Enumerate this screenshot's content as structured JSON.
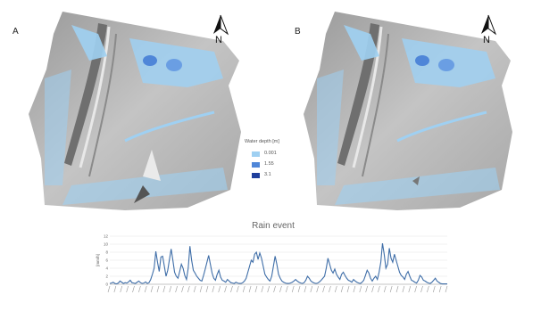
{
  "panels": [
    {
      "label": "A",
      "north_label": "N"
    },
    {
      "label": "B",
      "north_label": "N"
    }
  ],
  "legend": {
    "title": "Water depth [m]",
    "items": [
      {
        "label": "0.001",
        "color": "#9fd0f2"
      },
      {
        "label": "1.55",
        "color": "#4f86d8"
      },
      {
        "label": "3.1",
        "color": "#1f3f9c"
      }
    ]
  },
  "colors": {
    "terrain": "#b9b9b9",
    "terrain_dark": "#7f7f7f",
    "water_shallow": "#9fd0f2",
    "water_mid": "#4f86d8",
    "line": "#3f6ea8"
  },
  "chart_data": {
    "type": "line",
    "title": "Rain event",
    "ylabel": "[mm/h]",
    "xlabel": "",
    "ylim": [
      0,
      12
    ],
    "yticks": [
      0,
      2,
      4,
      6,
      8,
      10,
      12
    ],
    "grid": true,
    "series": [
      {
        "values": [
          0.2,
          0.3,
          0.5,
          0.2,
          0.1,
          0.3,
          0.8,
          0.5,
          0.2,
          0.4,
          0.3,
          0.6,
          1.0,
          0.4,
          0.3,
          0.2,
          0.5,
          0.8,
          0.4,
          0.2,
          0.3,
          0.6,
          0.2,
          0.4,
          1.2,
          2.5,
          4.0,
          8.2,
          5.5,
          3.2,
          6.8,
          7.0,
          4.5,
          2.0,
          3.5,
          6.2,
          8.8,
          6.0,
          3.0,
          2.0,
          1.5,
          3.2,
          5.0,
          4.0,
          2.2,
          1.2,
          4.0,
          9.5,
          6.0,
          3.5,
          2.8,
          2.0,
          1.5,
          1.0,
          0.8,
          2.2,
          3.8,
          5.5,
          7.2,
          5.0,
          2.8,
          1.5,
          1.0,
          2.5,
          3.5,
          1.8,
          1.0,
          0.8,
          0.5,
          1.2,
          0.8,
          0.4,
          0.3,
          0.2,
          0.5,
          0.3,
          0.2,
          0.2,
          0.4,
          0.8,
          1.5,
          3.0,
          4.5,
          6.0,
          5.5,
          7.5,
          8.0,
          6.2,
          7.8,
          6.5,
          4.5,
          2.5,
          1.8,
          1.2,
          0.8,
          2.0,
          4.5,
          7.0,
          5.0,
          2.5,
          1.5,
          0.8,
          0.5,
          0.3,
          0.2,
          0.2,
          0.3,
          0.5,
          0.8,
          1.2,
          0.8,
          0.5,
          0.3,
          0.2,
          0.4,
          1.0,
          2.0,
          1.5,
          0.8,
          0.5,
          0.3,
          0.2,
          0.3,
          0.6,
          1.0,
          1.5,
          2.0,
          4.0,
          6.5,
          5.0,
          3.5,
          2.8,
          3.8,
          2.5,
          1.8,
          1.2,
          2.5,
          3.0,
          2.2,
          1.5,
          1.0,
          0.8,
          0.5,
          1.2,
          0.8,
          0.5,
          0.3,
          0.2,
          0.5,
          1.0,
          2.2,
          3.5,
          2.8,
          1.5,
          0.8,
          1.5,
          2.0,
          1.2,
          3.0,
          5.5,
          10.2,
          7.5,
          4.0,
          5.0,
          9.0,
          6.5,
          5.5,
          7.5,
          6.0,
          4.5,
          3.0,
          2.2,
          1.8,
          1.2,
          2.5,
          3.2,
          2.0,
          1.0,
          0.8,
          0.5,
          0.3,
          1.0,
          2.2,
          1.8,
          1.0,
          0.8,
          0.5,
          0.3,
          0.2,
          0.5,
          1.0,
          1.5,
          0.8,
          0.5,
          0.2,
          0.1,
          0.1,
          0.1,
          0.1
        ]
      }
    ]
  }
}
